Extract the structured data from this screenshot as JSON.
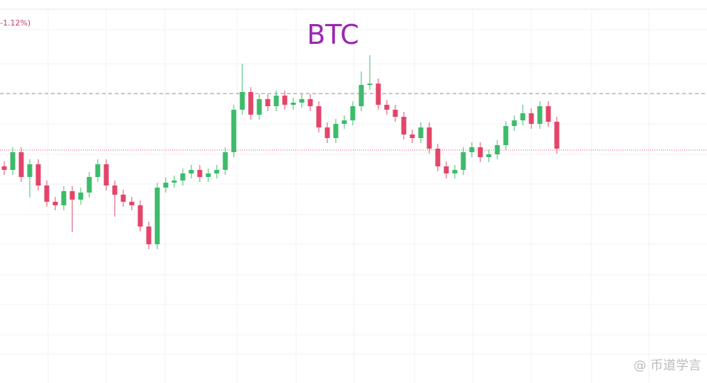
{
  "chart_data": {
    "type": "candlestick",
    "title": "BTC",
    "change_label": "-1.12%)",
    "watermark": "@ 币道学言",
    "ylim": [
      0,
      541
    ],
    "up_color": "#3dbb6b",
    "down_color": "#e3456a",
    "open": [
      306,
      301,
      326,
      291,
      309,
      279,
      256,
      251,
      271,
      259,
      269,
      291,
      309,
      279,
      266,
      256,
      251,
      221,
      196,
      276,
      283,
      286,
      296,
      301,
      291,
      296,
      301,
      326,
      386,
      411,
      379,
      401,
      391,
      406,
      393,
      396,
      401,
      391,
      361,
      346,
      366,
      371,
      391,
      421,
      423,
      393,
      386,
      376,
      351,
      346,
      361,
      331,
      306,
      296,
      301,
      326,
      333,
      319,
      323,
      336,
      363,
      371,
      381,
      366,
      391,
      369
    ],
    "high": [
      313,
      333,
      333,
      316,
      316,
      286,
      263,
      278,
      278,
      276,
      298,
      316,
      316,
      286,
      273,
      263,
      258,
      228,
      283,
      290,
      293,
      303,
      308,
      308,
      303,
      308,
      333,
      393,
      451,
      418,
      408,
      408,
      413,
      413,
      403,
      408,
      408,
      398,
      368,
      373,
      378,
      398,
      440,
      463,
      430,
      400,
      393,
      383,
      358,
      368,
      368,
      338,
      313,
      308,
      333,
      340,
      340,
      330,
      343,
      370,
      378,
      393,
      388,
      398,
      398,
      376
    ],
    "low": [
      294,
      294,
      284,
      262,
      272,
      249,
      244,
      244,
      213,
      252,
      262,
      284,
      272,
      235,
      249,
      244,
      214,
      189,
      189,
      269,
      276,
      279,
      289,
      284,
      284,
      289,
      294,
      319,
      379,
      372,
      372,
      384,
      384,
      386,
      386,
      389,
      384,
      354,
      339,
      339,
      359,
      364,
      384,
      414,
      386,
      379,
      369,
      344,
      339,
      339,
      324,
      299,
      289,
      289,
      294,
      319,
      312,
      312,
      316,
      329,
      356,
      364,
      359,
      359,
      362,
      324
    ],
    "close": [
      301,
      326,
      291,
      309,
      279,
      256,
      251,
      271,
      259,
      269,
      291,
      309,
      279,
      266,
      256,
      251,
      221,
      196,
      276,
      283,
      286,
      296,
      301,
      291,
      296,
      301,
      326,
      386,
      411,
      379,
      401,
      391,
      406,
      393,
      396,
      401,
      391,
      361,
      346,
      366,
      371,
      391,
      421,
      423,
      393,
      386,
      376,
      351,
      346,
      361,
      331,
      306,
      296,
      301,
      326,
      333,
      319,
      323,
      336,
      363,
      371,
      381,
      366,
      391,
      369,
      331
    ],
    "reference_lines": [
      {
        "value": 409,
        "color": "#999999",
        "style": "dashed"
      },
      {
        "value": 329,
        "color": "#e3456a",
        "style": "dotted"
      }
    ]
  }
}
